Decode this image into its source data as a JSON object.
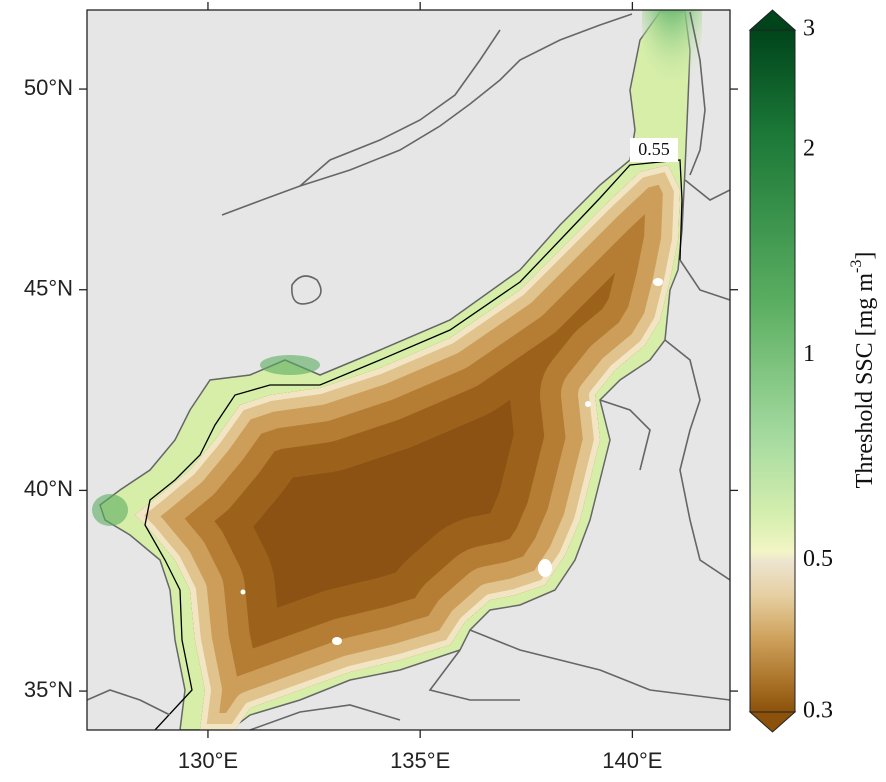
{
  "map": {
    "xlim": [
      127.15,
      142.3
    ],
    "ylim": [
      34.03,
      51.97
    ],
    "xticks": [
      {
        "value": 130,
        "label": "130°E"
      },
      {
        "value": 135,
        "label": "135°E"
      },
      {
        "value": 140,
        "label": "140°E"
      }
    ],
    "yticks": [
      {
        "value": 35,
        "label": "35°N"
      },
      {
        "value": 40,
        "label": "40°N"
      },
      {
        "value": 45,
        "label": "45°N"
      },
      {
        "value": 50,
        "label": "50°N"
      }
    ],
    "contour_label": 0.55
  },
  "colorbar": {
    "label": "Threshold SSC [mg m",
    "label_exponent": "-3",
    "label_close": "]",
    "lim": [
      0.3,
      3
    ],
    "scale": "log",
    "ticks": [
      0.3,
      0.5,
      1,
      2,
      3
    ]
  }
}
